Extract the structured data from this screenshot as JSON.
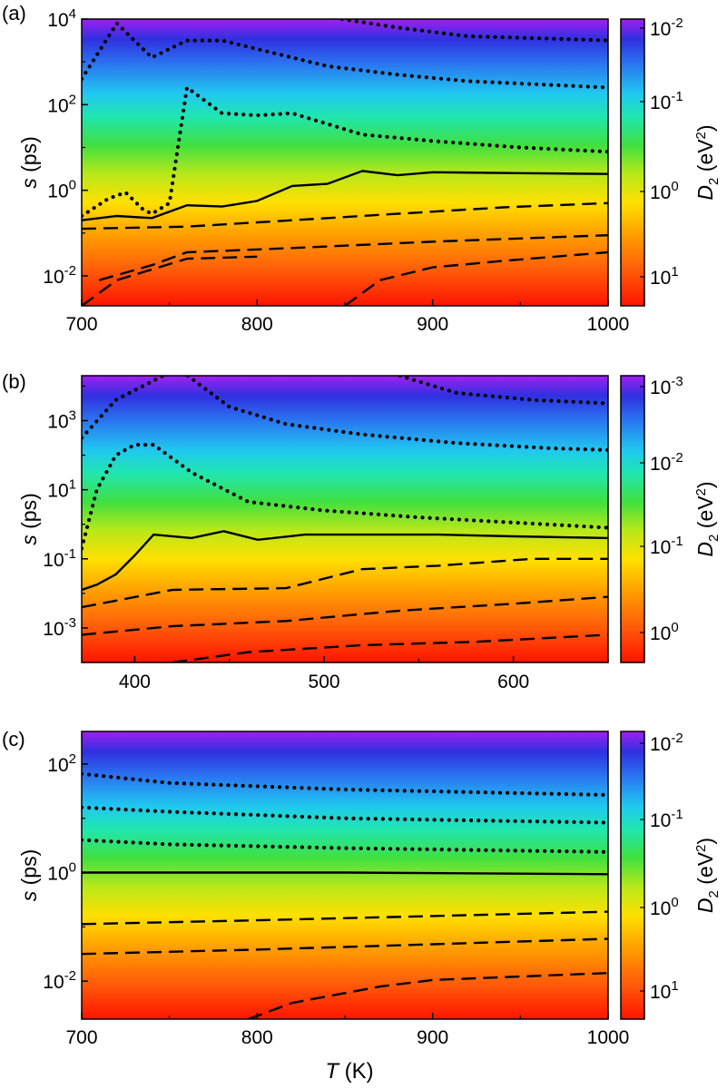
{
  "figure": {
    "xlabel_var": "T",
    "xlabel_unit": " (K)",
    "ylabel_var": "s",
    "ylabel_unit": " (ps)",
    "cbar_label_var": "D",
    "cbar_label_sub": "2",
    "cbar_label_unit_pre": " (eV",
    "cbar_label_unit_sup": "2",
    "cbar_label_unit_post": ")"
  },
  "chart_data": [
    {
      "type": "heatmap",
      "panel_label": "(a)",
      "xlim": [
        700,
        1000
      ],
      "ylim_log10": [
        -2.7,
        4
      ],
      "xticks": [
        700,
        800,
        900,
        1000
      ],
      "yticks": [
        {
          "base": "10",
          "exp": "4",
          "value_log10": 4
        },
        {
          "base": "10",
          "exp": "2",
          "value_log10": 2
        },
        {
          "base": "10",
          "exp": "0",
          "value_log10": 0
        },
        {
          "base": "10",
          "exp": "-2",
          "value_log10": -2
        }
      ],
      "cbar_ticks": [
        {
          "base": "10",
          "exp": "-2"
        },
        {
          "base": "10",
          "exp": "-1"
        },
        {
          "base": "10",
          "exp": "0"
        },
        {
          "base": "10",
          "exp": "1"
        }
      ],
      "colorbar": "D2 decreasing upward (red = 10^1, purple = 10^-2)",
      "contours": [
        {
          "style": "solid",
          "points": [
            [
              700,
              -0.7
            ],
            [
              720,
              -0.6
            ],
            [
              740,
              -0.65
            ],
            [
              760,
              -0.35
            ],
            [
              780,
              -0.38
            ],
            [
              800,
              -0.25
            ],
            [
              820,
              0.1
            ],
            [
              840,
              0.15
            ],
            [
              860,
              0.45
            ],
            [
              880,
              0.35
            ],
            [
              900,
              0.42
            ],
            [
              950,
              0.4
            ],
            [
              1000,
              0.38
            ]
          ]
        },
        {
          "style": "dotted",
          "points": [
            [
              700,
              -0.6
            ],
            [
              715,
              -0.2
            ],
            [
              725,
              -0.05
            ],
            [
              735,
              -0.45
            ],
            [
              740,
              -0.55
            ],
            [
              750,
              -0.3
            ],
            [
              760,
              2.4
            ],
            [
              780,
              1.8
            ],
            [
              800,
              1.75
            ],
            [
              820,
              1.8
            ],
            [
              860,
              1.3
            ],
            [
              900,
              1.15
            ],
            [
              950,
              1.0
            ],
            [
              1000,
              0.9
            ]
          ]
        },
        {
          "style": "dotted",
          "points": [
            [
              700,
              2.6
            ],
            [
              720,
              3.9
            ],
            [
              740,
              3.1
            ],
            [
              760,
              3.5
            ],
            [
              780,
              3.5
            ],
            [
              800,
              3.3
            ],
            [
              840,
              2.9
            ],
            [
              880,
              2.7
            ],
            [
              920,
              2.55
            ],
            [
              1000,
              2.4
            ]
          ]
        },
        {
          "style": "dotted",
          "points": [
            [
              840,
              4.05
            ],
            [
              880,
              3.8
            ],
            [
              920,
              3.6
            ],
            [
              960,
              3.55
            ],
            [
              1000,
              3.5
            ]
          ]
        },
        {
          "style": "dashed",
          "points": [
            [
              700,
              -0.9
            ],
            [
              760,
              -0.85
            ],
            [
              820,
              -0.7
            ],
            [
              880,
              -0.55
            ],
            [
              940,
              -0.4
            ],
            [
              1000,
              -0.3
            ]
          ]
        },
        {
          "style": "dashed",
          "points": [
            [
              710,
              -2.1
            ],
            [
              740,
              -1.75
            ],
            [
              760,
              -1.45
            ],
            [
              820,
              -1.35
            ],
            [
              900,
              -1.2
            ],
            [
              1000,
              -1.05
            ]
          ]
        },
        {
          "style": "dashed",
          "points": [
            [
              700,
              -2.7
            ],
            [
              720,
              -2.1
            ],
            [
              760,
              -1.6
            ],
            [
              800,
              -1.55
            ]
          ]
        },
        {
          "style": "dashed",
          "points": [
            [
              850,
              -2.7
            ],
            [
              870,
              -2.1
            ],
            [
              900,
              -1.8
            ],
            [
              940,
              -1.65
            ],
            [
              1000,
              -1.45
            ]
          ]
        }
      ]
    },
    {
      "type": "heatmap",
      "panel_label": "(b)",
      "xlim": [
        372,
        650
      ],
      "ylim_log10": [
        -4,
        4.3
      ],
      "xticks": [
        400,
        500,
        600
      ],
      "yticks": [
        {
          "base": "10",
          "exp": "3",
          "value_log10": 3
        },
        {
          "base": "10",
          "exp": "1",
          "value_log10": 1
        },
        {
          "base": "10",
          "exp": "-1",
          "value_log10": -1
        },
        {
          "base": "10",
          "exp": "-3",
          "value_log10": -3
        }
      ],
      "cbar_ticks": [
        {
          "base": "10",
          "exp": "-3"
        },
        {
          "base": "10",
          "exp": "-2"
        },
        {
          "base": "10",
          "exp": "-1"
        },
        {
          "base": "10",
          "exp": "0"
        }
      ],
      "colorbar": "D2 decreasing upward (red = 10^0, purple = 10^-3)",
      "contours": [
        {
          "style": "solid",
          "points": [
            [
              372,
              -1.9
            ],
            [
              380,
              -1.75
            ],
            [
              390,
              -1.45
            ],
            [
              400,
              -0.9
            ],
            [
              410,
              -0.3
            ],
            [
              430,
              -0.4
            ],
            [
              447,
              -0.2
            ],
            [
              465,
              -0.45
            ],
            [
              490,
              -0.3
            ],
            [
              520,
              -0.3
            ],
            [
              560,
              -0.3
            ],
            [
              600,
              -0.35
            ],
            [
              650,
              -0.4
            ]
          ]
        },
        {
          "style": "dotted",
          "points": [
            [
              372,
              -0.7
            ],
            [
              380,
              1.0
            ],
            [
              390,
              2.0
            ],
            [
              400,
              2.3
            ],
            [
              410,
              2.3
            ],
            [
              430,
              1.5
            ],
            [
              460,
              0.65
            ],
            [
              500,
              0.4
            ],
            [
              550,
              0.2
            ],
            [
              600,
              0.05
            ],
            [
              650,
              -0.1
            ]
          ]
        },
        {
          "style": "dotted",
          "points": [
            [
              372,
              2.5
            ],
            [
              390,
              3.6
            ],
            [
              415,
              4.3
            ]
          ]
        },
        {
          "style": "dotted",
          "points": [
            [
              428,
              4.3
            ],
            [
              450,
              3.4
            ],
            [
              480,
              2.9
            ],
            [
              520,
              2.6
            ],
            [
              570,
              2.35
            ],
            [
              620,
              2.2
            ],
            [
              650,
              2.15
            ]
          ]
        },
        {
          "style": "dotted",
          "points": [
            [
              540,
              4.3
            ],
            [
              570,
              3.8
            ],
            [
              610,
              3.6
            ],
            [
              650,
              3.5
            ]
          ]
        },
        {
          "style": "dashed",
          "points": [
            [
              372,
              -2.4
            ],
            [
              420,
              -1.9
            ],
            [
              480,
              -1.85
            ],
            [
              520,
              -1.3
            ],
            [
              560,
              -1.2
            ],
            [
              610,
              -1.0
            ],
            [
              650,
              -1.0
            ]
          ]
        },
        {
          "style": "dashed",
          "points": [
            [
              372,
              -3.2
            ],
            [
              420,
              -2.95
            ],
            [
              480,
              -2.8
            ],
            [
              540,
              -2.5
            ],
            [
              600,
              -2.3
            ],
            [
              650,
              -2.1
            ]
          ]
        },
        {
          "style": "dashed",
          "points": [
            [
              420,
              -4.0
            ],
            [
              460,
              -3.7
            ],
            [
              520,
              -3.5
            ],
            [
              580,
              -3.4
            ],
            [
              650,
              -3.2
            ]
          ]
        }
      ]
    },
    {
      "type": "heatmap",
      "panel_label": "(c)",
      "xlim": [
        700,
        1000
      ],
      "ylim_log10": [
        -2.7,
        2.6
      ],
      "xticks": [
        700,
        800,
        900,
        1000
      ],
      "yticks": [
        {
          "base": "10",
          "exp": "2",
          "value_log10": 2
        },
        {
          "base": "10",
          "exp": "0",
          "value_log10": 0
        },
        {
          "base": "10",
          "exp": "-2",
          "value_log10": -2
        }
      ],
      "cbar_ticks": [
        {
          "base": "10",
          "exp": "-2"
        },
        {
          "base": "10",
          "exp": "-1"
        },
        {
          "base": "10",
          "exp": "0"
        },
        {
          "base": "10",
          "exp": "1"
        }
      ],
      "colorbar": "D2 decreasing upward (red = 10^1, purple = 10^-2)",
      "contours": [
        {
          "style": "solid",
          "points": [
            [
              700,
              0.0
            ],
            [
              850,
              0.0
            ],
            [
              1000,
              -0.03
            ]
          ]
        },
        {
          "style": "dotted",
          "points": [
            [
              700,
              0.6
            ],
            [
              750,
              0.52
            ],
            [
              850,
              0.45
            ],
            [
              1000,
              0.38
            ]
          ]
        },
        {
          "style": "dotted",
          "points": [
            [
              700,
              1.2
            ],
            [
              750,
              1.12
            ],
            [
              850,
              1.0
            ],
            [
              1000,
              0.92
            ]
          ]
        },
        {
          "style": "dotted",
          "points": [
            [
              700,
              1.82
            ],
            [
              750,
              1.65
            ],
            [
              850,
              1.53
            ],
            [
              1000,
              1.43
            ]
          ]
        },
        {
          "style": "dashed",
          "points": [
            [
              700,
              -0.95
            ],
            [
              800,
              -0.88
            ],
            [
              900,
              -0.8
            ],
            [
              1000,
              -0.72
            ]
          ]
        },
        {
          "style": "dashed",
          "points": [
            [
              700,
              -1.5
            ],
            [
              800,
              -1.42
            ],
            [
              900,
              -1.32
            ],
            [
              1000,
              -1.22
            ]
          ]
        },
        {
          "style": "dashed",
          "points": [
            [
              795,
              -2.7
            ],
            [
              820,
              -2.4
            ],
            [
              870,
              -2.1
            ],
            [
              900,
              -1.98
            ],
            [
              1000,
              -1.85
            ]
          ]
        }
      ]
    }
  ]
}
